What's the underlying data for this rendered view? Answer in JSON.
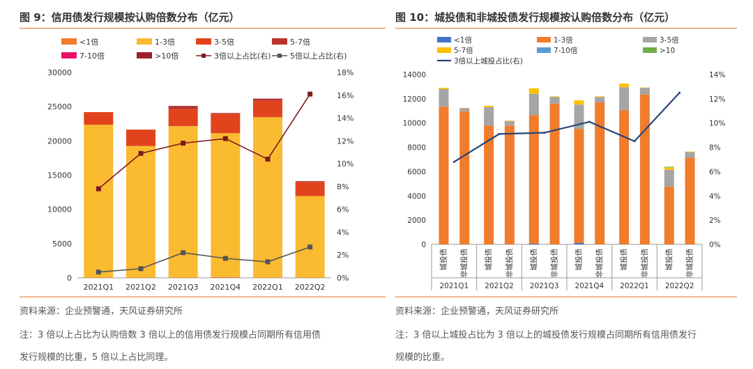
{
  "left": {
    "title": "图 9：信用债发行规模按认购倍数分布（亿元）",
    "source": "资料来源：企业预警通，天风证券研究所",
    "note_line1": "注：3 倍以上占比为认购倍数 3 倍以上的信用债发行规模占同期所有信用债",
    "note_line2": "发行规模的比重，5 倍以上占比同理。"
  },
  "right": {
    "title": "图 10：城投债和非城投债发行规模按认购倍数分布（亿元）",
    "source": "资料来源：企业预警通，天风证券研究所",
    "note_line1": "注：3 倍以上城投占比为 3 倍以上的城投债发行规模占同期所有信用债发行",
    "note_line2": "规模的比重。"
  },
  "chart_data": [
    {
      "type": "bar",
      "stacked": true,
      "categories": [
        "2021Q1",
        "2021Q2",
        "2021Q3",
        "2021Q4",
        "2022Q1",
        "2022Q2"
      ],
      "ylim": [
        0,
        30000
      ],
      "yticks": [
        0,
        5000,
        10000,
        15000,
        20000,
        25000,
        30000
      ],
      "y2lim": [
        0,
        18
      ],
      "y2ticks": [
        "0%",
        "2%",
        "4%",
        "6%",
        "8%",
        "10%",
        "12%",
        "14%",
        "16%",
        "18%"
      ],
      "series": [
        {
          "name": "<1倍",
          "color": "#f07c2c",
          "values": [
            50,
            50,
            50,
            120,
            60,
            50
          ]
        },
        {
          "name": "1-3倍",
          "color": "#fbbb30",
          "values": [
            22300,
            19200,
            22100,
            21000,
            23400,
            11900
          ]
        },
        {
          "name": "3-5倍",
          "color": "#e1441c",
          "values": [
            1850,
            2400,
            2500,
            2800,
            2400,
            2050
          ]
        },
        {
          "name": "5-7倍",
          "color": "#b8342b",
          "values": [
            0,
            0,
            300,
            150,
            230,
            120
          ]
        },
        {
          "name": "7-10倍",
          "color": "#e8106a",
          "values": [
            0,
            0,
            0,
            0,
            0,
            0
          ]
        },
        {
          "name": ">10倍",
          "color": "#9e1d2e",
          "values": [
            0,
            0,
            150,
            0,
            80,
            0
          ]
        }
      ],
      "lines": [
        {
          "name": "3倍以上占比(右)",
          "color": "#7e1a1e",
          "values": [
            7.8,
            10.9,
            11.8,
            12.2,
            10.4,
            16.1
          ]
        },
        {
          "name": "5倍以上占比(右)",
          "color": "#555555",
          "values": [
            0.5,
            0.8,
            2.2,
            1.7,
            1.4,
            2.7
          ]
        }
      ]
    },
    {
      "type": "bar",
      "stacked": true,
      "groups": [
        "2021Q1",
        "2021Q2",
        "2021Q3",
        "2021Q4",
        "2022Q1",
        "2022Q2"
      ],
      "categories": [
        "城投债",
        "非城投债",
        "城投债",
        "非城投债",
        "城投债",
        "非城投债",
        "城投债",
        "非城投债",
        "城投债",
        "非城投债",
        "城投债",
        "非城投债"
      ],
      "ylim": [
        0,
        14000
      ],
      "yticks": [
        0,
        2000,
        4000,
        6000,
        8000,
        10000,
        12000,
        14000
      ],
      "y2lim": [
        0,
        14
      ],
      "y2ticks": [
        "0%",
        "2%",
        "4%",
        "6%",
        "8%",
        "10%",
        "12%",
        "14%"
      ],
      "series": [
        {
          "name": "<1倍",
          "color": "#4472c4",
          "values": [
            0,
            0,
            0,
            0,
            60,
            0,
            120,
            0,
            0,
            0,
            0,
            0
          ]
        },
        {
          "name": "1-3倍",
          "color": "#f07c2c",
          "values": [
            11350,
            10950,
            9800,
            9800,
            10600,
            11600,
            9400,
            11700,
            11050,
            12350,
            4750,
            7150
          ]
        },
        {
          "name": "3-5倍",
          "color": "#a5a5a5",
          "values": [
            1450,
            270,
            1500,
            350,
            1750,
            550,
            2000,
            450,
            1900,
            550,
            1400,
            450
          ]
        },
        {
          "name": "5-7倍",
          "color": "#ffc000",
          "values": [
            100,
            30,
            120,
            50,
            450,
            50,
            350,
            50,
            300,
            30,
            200,
            50
          ]
        },
        {
          "name": "7-10倍",
          "color": "#5b9bd5",
          "values": [
            0,
            0,
            0,
            0,
            0,
            0,
            0,
            0,
            0,
            0,
            0,
            0
          ]
        },
        {
          "name": ">10",
          "color": "#70ad47",
          "values": [
            0,
            0,
            0,
            0,
            0,
            0,
            0,
            0,
            0,
            0,
            50,
            0
          ]
        }
      ],
      "lines": [
        {
          "name": "3倍以上城投占比(右)",
          "color": "#264478",
          "values": [
            6.8,
            9.1,
            9.2,
            10.1,
            8.5,
            12.5
          ]
        }
      ]
    }
  ]
}
